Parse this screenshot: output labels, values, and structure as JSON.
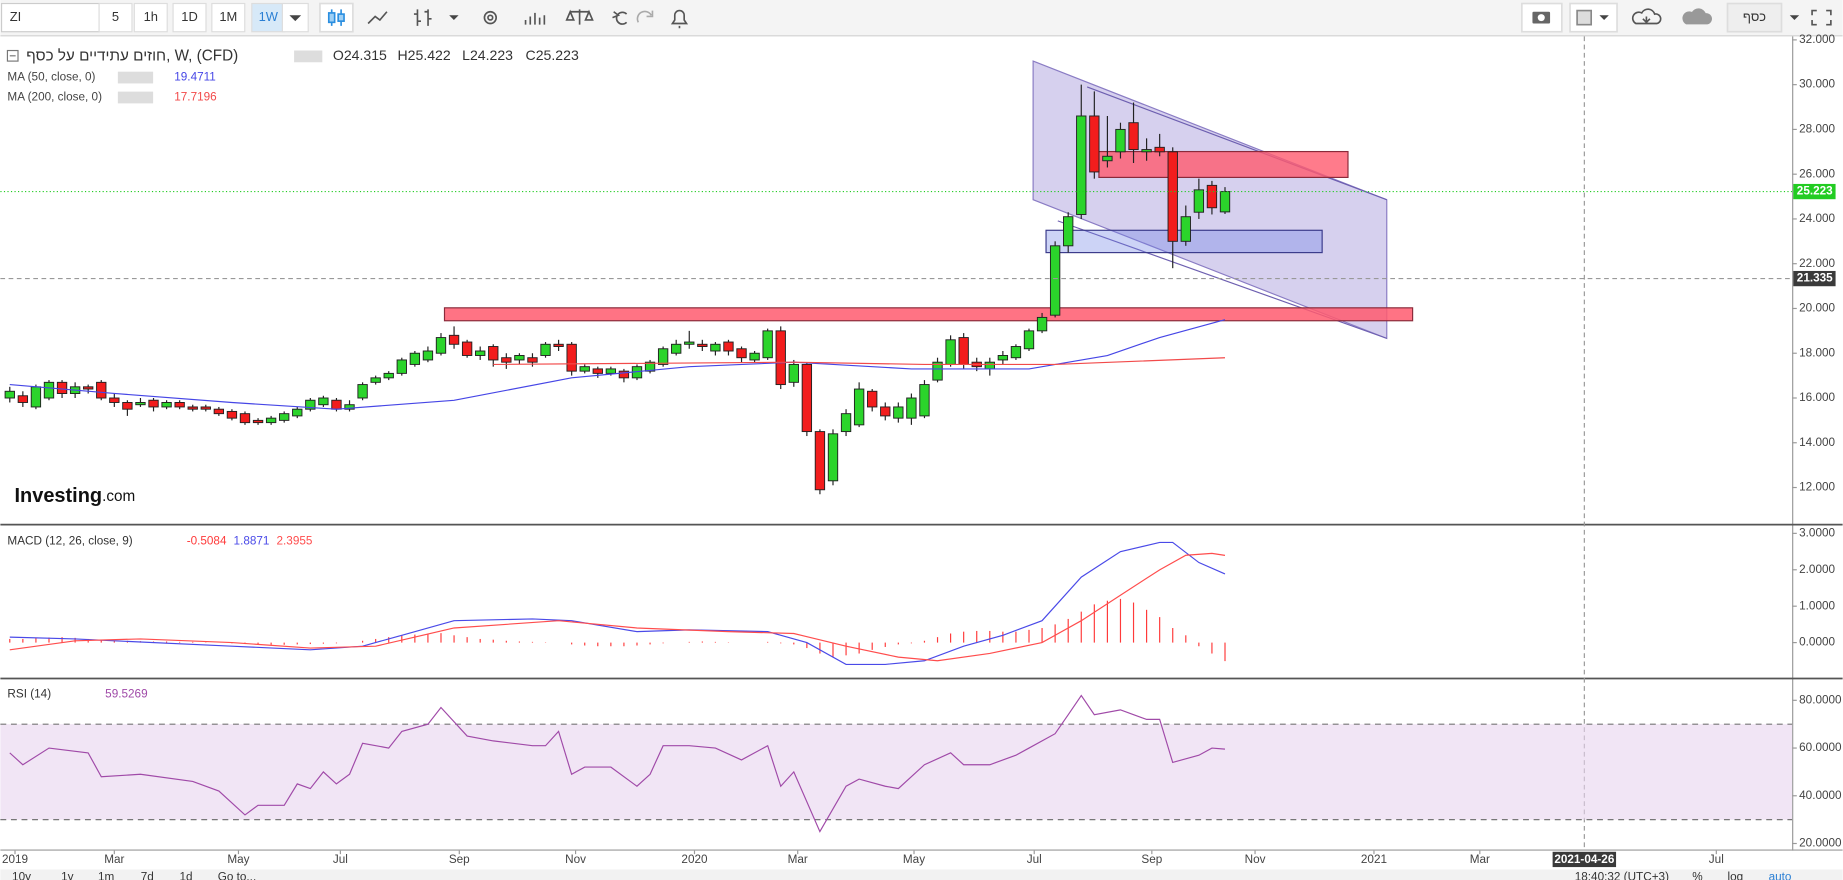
{
  "toolbar": {
    "symbol": "ZI",
    "intervals": [
      "5",
      "1h",
      "1D",
      "1M",
      "1W"
    ],
    "active_interval": 4,
    "right_label": "כסף"
  },
  "logo": [
    "Investing",
    ".com"
  ],
  "bottom_bar": {
    "ranges": [
      "10y",
      "1y",
      "1m",
      "7d",
      "1d"
    ],
    "goto": "Go to...",
    "time": "18:40:32 (UTC+3)",
    "options": [
      "%",
      "log",
      "auto"
    ]
  },
  "x_axis": {
    "xlim": [
      -0.72,
      136.4
    ],
    "xticks": [
      {
        "value": 0.4,
        "label": "2019"
      },
      {
        "value": 8,
        "label": "Mar"
      },
      {
        "value": 17.5,
        "label": "May"
      },
      {
        "value": 25.3,
        "label": "Jul"
      },
      {
        "value": 34.4,
        "label": "Sep"
      },
      {
        "value": 43.3,
        "label": "Nov"
      },
      {
        "value": 52.4,
        "label": "2020"
      },
      {
        "value": 60.3,
        "label": "Mar"
      },
      {
        "value": 69.2,
        "label": "May"
      },
      {
        "value": 78.4,
        "label": "Jul"
      },
      {
        "value": 87.4,
        "label": "Sep"
      },
      {
        "value": 95.3,
        "label": "Nov"
      },
      {
        "value": 104.4,
        "label": "2021"
      },
      {
        "value": 112.5,
        "label": "Mar"
      },
      {
        "value": 130.6,
        "label": "Jul"
      }
    ],
    "crosshair_x": 120.5,
    "crosshair_label": "2021-04-26"
  },
  "chart_data": [
    {
      "type": "candlestick",
      "title": "חוזים עתידיים על כסף, W, (CFD)",
      "ohlc_labels": [
        "O24.315",
        "H25.422",
        "L24.223",
        "C25.223"
      ],
      "up_color": "#2bd42b",
      "down_color": "#f21d1d",
      "x": [
        0,
        1,
        2,
        3,
        4,
        5,
        6,
        7,
        8,
        9,
        10,
        11,
        12,
        13,
        14,
        15,
        16,
        17,
        18,
        19,
        20,
        21,
        22,
        23,
        24,
        25,
        26,
        27,
        28,
        29,
        30,
        31,
        32,
        33,
        34,
        35,
        36,
        37,
        38,
        39,
        40,
        41,
        42,
        43,
        44,
        45,
        46,
        47,
        48,
        49,
        50,
        51,
        52,
        53,
        54,
        55,
        56,
        57,
        58,
        59,
        60,
        61,
        62,
        63,
        64,
        65,
        66,
        67,
        68,
        69,
        70,
        71,
        72,
        73,
        74,
        75,
        76,
        77,
        78,
        79,
        80,
        81,
        82,
        83,
        84,
        85,
        86,
        87,
        88,
        89,
        90,
        91,
        92,
        93
      ],
      "open": [
        16.0,
        16.1,
        15.6,
        16.0,
        16.7,
        16.2,
        16.5,
        16.7,
        16.0,
        15.8,
        15.7,
        15.9,
        15.6,
        15.8,
        15.6,
        15.6,
        15.5,
        15.4,
        15.3,
        15.0,
        14.9,
        15.0,
        15.2,
        15.5,
        15.7,
        15.9,
        15.5,
        16.0,
        16.7,
        16.9,
        17.1,
        17.5,
        17.7,
        18.0,
        18.8,
        18.5,
        17.9,
        18.3,
        17.8,
        17.7,
        17.8,
        17.9,
        18.4,
        18.4,
        17.2,
        17.3,
        17.1,
        17.2,
        16.9,
        17.2,
        17.5,
        18.0,
        18.4,
        18.4,
        18.1,
        18.5,
        18.2,
        17.7,
        17.8,
        19.0,
        16.7,
        17.5,
        14.5,
        12.3,
        14.5,
        14.8,
        16.3,
        15.6,
        15.1,
        15.1,
        15.2,
        16.8,
        17.5,
        18.7,
        17.6,
        17.3,
        17.7,
        17.8,
        18.2,
        19.0,
        19.7,
        22.8,
        24.2,
        28.6,
        26.6,
        27.0,
        28.3,
        27.0,
        27.2,
        27.0,
        23.0,
        24.3,
        25.5,
        24.315
      ],
      "high": [
        16.5,
        16.3,
        16.6,
        16.8,
        16.8,
        16.7,
        16.6,
        16.8,
        16.2,
        15.9,
        16.0,
        16.0,
        15.9,
        15.9,
        15.7,
        15.7,
        15.6,
        15.5,
        15.4,
        15.1,
        15.2,
        15.4,
        15.6,
        16.0,
        16.1,
        16.0,
        15.9,
        16.7,
        17.0,
        17.2,
        17.8,
        18.1,
        18.3,
        18.9,
        19.2,
        18.6,
        18.3,
        18.4,
        18.0,
        18.0,
        18.0,
        18.5,
        18.6,
        18.5,
        17.5,
        17.4,
        17.4,
        17.3,
        17.5,
        17.7,
        18.3,
        18.6,
        19.0,
        18.6,
        18.5,
        18.6,
        18.3,
        18.1,
        19.1,
        19.2,
        17.7,
        17.6,
        14.6,
        14.6,
        15.5,
        16.7,
        16.4,
        15.8,
        15.8,
        16.2,
        16.8,
        17.8,
        18.8,
        18.9,
        17.8,
        17.8,
        18.1,
        18.4,
        19.1,
        19.8,
        23.0,
        24.3,
        30.0,
        29.7,
        28.6,
        28.3,
        29.2,
        27.6,
        27.8,
        27.2,
        24.6,
        25.8,
        25.7,
        25.422
      ],
      "low": [
        15.8,
        15.6,
        15.5,
        15.9,
        16.0,
        16.0,
        16.2,
        15.9,
        15.6,
        15.2,
        15.6,
        15.4,
        15.5,
        15.5,
        15.4,
        15.4,
        15.2,
        15.0,
        14.8,
        14.8,
        14.8,
        14.9,
        15.1,
        15.4,
        15.6,
        15.4,
        15.4,
        15.9,
        16.6,
        16.8,
        17.0,
        17.4,
        17.6,
        17.9,
        18.2,
        17.8,
        17.7,
        17.4,
        17.3,
        17.5,
        17.4,
        17.8,
        18.1,
        17.0,
        17.1,
        16.9,
        17.0,
        16.7,
        16.8,
        17.1,
        17.4,
        17.9,
        18.2,
        18.1,
        17.9,
        17.9,
        17.6,
        17.6,
        17.7,
        16.4,
        16.5,
        14.3,
        11.7,
        12.1,
        14.3,
        14.7,
        15.4,
        15.0,
        14.9,
        14.8,
        15.1,
        16.7,
        17.4,
        17.3,
        17.2,
        17.0,
        17.5,
        17.7,
        18.1,
        18.9,
        19.6,
        22.5,
        24.0,
        25.8,
        26.3,
        26.7,
        26.5,
        26.6,
        26.8,
        21.8,
        22.8,
        24.0,
        24.2,
        24.223
      ],
      "close": [
        16.3,
        15.8,
        16.5,
        16.7,
        16.2,
        16.5,
        16.4,
        16.0,
        15.8,
        15.5,
        15.8,
        15.6,
        15.8,
        15.6,
        15.5,
        15.5,
        15.3,
        15.1,
        14.9,
        14.9,
        15.1,
        15.3,
        15.5,
        15.9,
        16.0,
        15.5,
        15.7,
        16.6,
        16.9,
        17.1,
        17.7,
        18.0,
        18.1,
        18.7,
        18.4,
        17.9,
        18.1,
        17.7,
        17.6,
        17.9,
        17.6,
        18.4,
        18.3,
        17.2,
        17.4,
        17.1,
        17.3,
        16.9,
        17.4,
        17.6,
        18.2,
        18.4,
        18.5,
        18.3,
        18.4,
        18.1,
        17.8,
        18.0,
        19.0,
        16.6,
        17.5,
        14.5,
        11.9,
        14.4,
        15.3,
        16.4,
        15.6,
        15.2,
        15.6,
        16.0,
        16.6,
        17.6,
        18.6,
        17.5,
        17.4,
        17.6,
        17.9,
        18.3,
        19.0,
        19.6,
        22.8,
        24.1,
        28.6,
        26.1,
        26.8,
        28.0,
        27.1,
        27.1,
        27.0,
        23.0,
        24.1,
        25.3,
        24.5,
        25.223
      ],
      "overlays": [
        {
          "name": "MA (50, close, 0)",
          "color": "#4646e6",
          "last_value": 19.4711,
          "x": [
            0,
            8,
            17,
            25,
            34,
            43,
            52,
            60,
            69,
            78,
            84,
            88,
            93
          ],
          "values": [
            16.6,
            16.2,
            15.8,
            15.5,
            15.9,
            16.9,
            17.4,
            17.6,
            17.3,
            17.3,
            17.9,
            18.7,
            19.5
          ]
        },
        {
          "name": "MA (200, close, 0)",
          "color": "#f24a4a",
          "last_value": 17.7196,
          "x": [
            37,
            60,
            70,
            80,
            93
          ],
          "values": [
            17.5,
            17.6,
            17.5,
            17.5,
            17.8
          ]
        }
      ],
      "last_price": 25.223,
      "last_price_color": "#22cc22",
      "crosshair_price": 21.335,
      "ylim": [
        10.58,
        32.05
      ],
      "yticks": [
        {
          "value": 12,
          "label": "12.000"
        },
        {
          "value": 14,
          "label": "14.000"
        },
        {
          "value": 16,
          "label": "16.000"
        },
        {
          "value": 18,
          "label": "18.000"
        },
        {
          "value": 20,
          "label": "20.000"
        },
        {
          "value": 22,
          "label": "22.000"
        },
        {
          "value": 24,
          "label": "24.000"
        },
        {
          "value": 26,
          "label": "26.000"
        },
        {
          "value": 28,
          "label": "28.000"
        },
        {
          "value": 30,
          "label": "30.000"
        },
        {
          "value": 32,
          "label": "32.000"
        }
      ]
    },
    {
      "type": "combo",
      "title": "MACD (12, 26, close, 9)",
      "series": [
        {
          "kind": "bar",
          "color": "#ff3a3a",
          "last_value": -0.5084,
          "x": [
            0,
            1,
            2,
            3,
            4,
            5,
            6,
            7,
            8,
            9,
            10,
            11,
            12,
            13,
            14,
            15,
            16,
            17,
            18,
            19,
            20,
            21,
            22,
            23,
            24,
            25,
            26,
            27,
            28,
            29,
            30,
            31,
            32,
            33,
            34,
            35,
            36,
            37,
            38,
            39,
            40,
            41,
            42,
            43,
            44,
            45,
            46,
            47,
            48,
            49,
            50,
            51,
            52,
            53,
            54,
            55,
            56,
            57,
            58,
            59,
            60,
            61,
            62,
            63,
            64,
            65,
            66,
            67,
            68,
            69,
            70,
            71,
            72,
            73,
            74,
            75,
            76,
            77,
            78,
            79,
            80,
            81,
            82,
            83,
            84,
            85,
            86,
            87,
            88,
            89,
            90,
            91,
            92,
            93
          ],
          "values": [
            0.1,
            0.1,
            0.12,
            0.14,
            0.15,
            0.13,
            0.1,
            0.08,
            0.06,
            0.05,
            0.04,
            0.03,
            0.03,
            0.02,
            0.02,
            0.01,
            0.0,
            -0.02,
            -0.04,
            -0.05,
            -0.06,
            -0.06,
            -0.05,
            -0.04,
            -0.03,
            -0.02,
            0.0,
            0.05,
            0.1,
            0.15,
            0.2,
            0.22,
            0.25,
            0.26,
            0.2,
            0.15,
            0.1,
            0.08,
            0.05,
            0.03,
            0.02,
            0.01,
            0.0,
            -0.05,
            -0.08,
            -0.1,
            -0.1,
            -0.1,
            -0.08,
            -0.05,
            -0.02,
            0.0,
            0.02,
            0.03,
            0.02,
            0.01,
            0.0,
            0.0,
            0.02,
            -0.02,
            -0.05,
            -0.15,
            -0.3,
            -0.4,
            -0.35,
            -0.3,
            -0.2,
            -0.12,
            -0.05,
            -0.02,
            0.05,
            0.15,
            0.25,
            0.3,
            0.32,
            0.32,
            0.3,
            0.3,
            0.35,
            0.4,
            0.5,
            0.65,
            0.85,
            1.05,
            1.15,
            1.2,
            1.1,
            0.9,
            0.7,
            0.4,
            0.2,
            -0.1,
            -0.3,
            -0.5084
          ]
        },
        {
          "kind": "line",
          "color": "#4a4ae8",
          "last_value": 1.8871,
          "x": [
            0,
            5,
            8,
            17,
            23,
            27,
            30,
            34,
            40,
            43,
            48,
            52,
            58,
            61,
            64,
            67,
            70,
            73,
            76,
            79,
            82,
            85,
            88,
            89,
            91,
            93
          ],
          "values": [
            0.15,
            0.1,
            0.05,
            -0.1,
            -0.2,
            -0.1,
            0.2,
            0.6,
            0.65,
            0.6,
            0.3,
            0.35,
            0.3,
            0.0,
            -0.6,
            -0.6,
            -0.5,
            -0.1,
            0.2,
            0.6,
            1.8,
            2.5,
            2.75,
            2.75,
            2.2,
            1.8871
          ]
        },
        {
          "kind": "line",
          "color": "#ff4d4d",
          "last_value": 2.3955,
          "x": [
            0,
            5,
            10,
            17,
            23,
            28,
            34,
            42,
            48,
            55,
            60,
            64,
            68,
            71,
            75,
            79,
            82,
            85,
            88,
            90,
            92,
            93
          ],
          "values": [
            -0.2,
            0.05,
            0.1,
            0.0,
            -0.15,
            -0.1,
            0.4,
            0.6,
            0.4,
            0.3,
            0.25,
            -0.1,
            -0.4,
            -0.5,
            -0.3,
            0.0,
            0.6,
            1.3,
            2.0,
            2.4,
            2.45,
            2.3955
          ]
        }
      ],
      "ylim": [
        -0.97,
        3.16
      ],
      "yticks": [
        {
          "value": 0,
          "label": "0.0000"
        },
        {
          "value": 1,
          "label": "1.0000"
        },
        {
          "value": 2,
          "label": "2.0000"
        },
        {
          "value": 3,
          "label": "3.0000"
        }
      ]
    },
    {
      "type": "line",
      "title": "RSI (14)",
      "band": [
        30,
        70
      ],
      "band_color": "#e8d3ee",
      "series": [
        {
          "kind": "line",
          "color": "#a04aa8",
          "last_value": 59.5269,
          "x": [
            0,
            1,
            3,
            6,
            7,
            10,
            14,
            16,
            18,
            19,
            21,
            22,
            23,
            24,
            25,
            26,
            27,
            29,
            30,
            32,
            33,
            35,
            37,
            40,
            41,
            42,
            43,
            44,
            46,
            48,
            49,
            50,
            52,
            54,
            56,
            58,
            59,
            60,
            62,
            64,
            65,
            67,
            68,
            70,
            72,
            73,
            75,
            77,
            78,
            80,
            81,
            82,
            83,
            85,
            86,
            87,
            88,
            89,
            91,
            92,
            93
          ],
          "values": [
            58,
            53,
            60,
            58,
            48,
            49,
            46,
            42,
            32,
            36,
            36,
            45,
            43,
            50,
            45,
            49,
            62,
            60,
            67,
            70,
            77,
            65,
            63,
            61,
            61,
            67,
            49,
            52,
            52,
            44,
            49,
            61,
            61,
            60,
            55,
            61,
            44,
            50,
            25,
            44,
            47,
            44,
            43,
            53,
            58,
            53,
            53,
            57,
            60,
            66,
            74,
            82,
            74,
            76,
            74,
            72,
            72,
            54,
            57,
            60,
            59.5269
          ]
        }
      ],
      "ylim": [
        18,
        88.4
      ],
      "yticks": [
        {
          "value": 20,
          "label": "20.0000"
        },
        {
          "value": 40,
          "label": "40.0000"
        },
        {
          "value": 60,
          "label": "60.0000"
        },
        {
          "value": 80,
          "label": "80.0000"
        }
      ]
    }
  ]
}
